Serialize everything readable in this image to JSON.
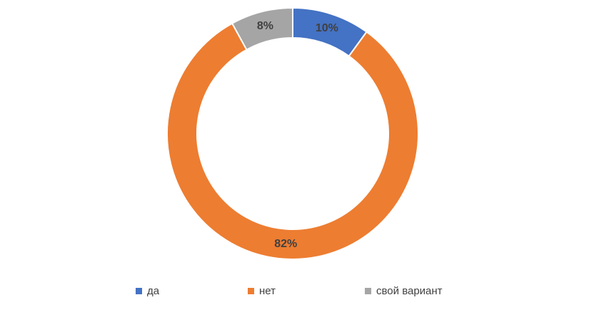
{
  "chart_data": {
    "type": "donut",
    "categories": [
      "да",
      "нет",
      "свой вариант"
    ],
    "values": [
      10,
      82,
      8
    ],
    "value_labels": [
      "10%",
      "82%",
      "8%"
    ],
    "colors": [
      "#4472c4",
      "#ed7d31",
      "#a5a5a5"
    ],
    "legend": "bottom"
  }
}
